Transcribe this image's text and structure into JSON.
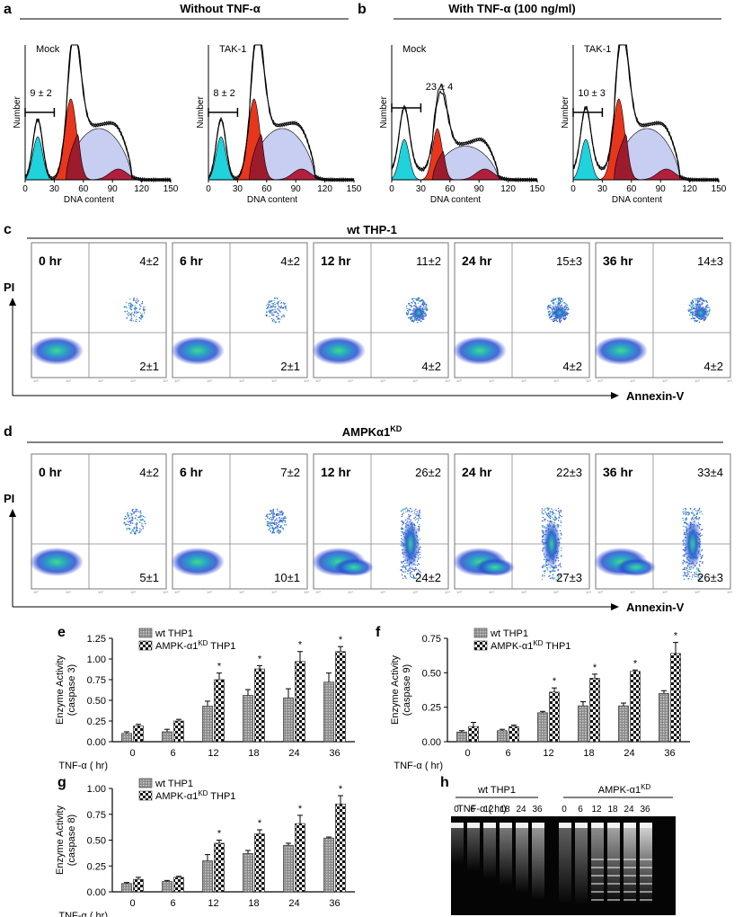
{
  "panels": {
    "a": {
      "letter": "a",
      "title": "Without TNF-α"
    },
    "b": {
      "letter": "b",
      "title": "With TNF-α (100 ng/ml)"
    },
    "c": {
      "letter": "c",
      "title": "wt THP-1"
    },
    "d": {
      "letter": "d",
      "title": "AMPKα1",
      "title_sup": "KD"
    },
    "e": {
      "letter": "e"
    },
    "f": {
      "letter": "f"
    },
    "g": {
      "letter": "g"
    },
    "h": {
      "letter": "h"
    }
  },
  "histograms": {
    "xlabel": "DNA content",
    "ylabel": "Number",
    "ticks": [
      "0",
      "30",
      "60",
      "90",
      "120",
      "150"
    ],
    "plots": [
      {
        "label": "Mock",
        "value": "9 ± 2"
      },
      {
        "label": "TAK-1",
        "value": "8 ± 2"
      },
      {
        "label": "Mock",
        "value": "23 ± 4"
      },
      {
        "label": "TAK-1",
        "value": "10 ± 3"
      }
    ]
  },
  "flow": {
    "y_axis": "PI",
    "x_axis": "Annexin-V",
    "tiny_ticks": [
      "10⁰",
      "10¹",
      "10²",
      "10³",
      "10⁴"
    ],
    "c": [
      {
        "time": "0 hr",
        "upper": "4±2",
        "lower": "2±1"
      },
      {
        "time": "6 hr",
        "upper": "4±2",
        "lower": "2±1"
      },
      {
        "time": "12 hr",
        "upper": "11±2",
        "lower": "4±2"
      },
      {
        "time": "24 hr",
        "upper": "15±3",
        "lower": "4±2"
      },
      {
        "time": "36 hr",
        "upper": "14±3",
        "lower": "4±2"
      }
    ],
    "d": [
      {
        "time": "0 hr",
        "upper": "4±2",
        "lower": "5±1"
      },
      {
        "time": "6 hr",
        "upper": "7±2",
        "lower": "10±1"
      },
      {
        "time": "12 hr",
        "upper": "26±2",
        "lower": "24±2"
      },
      {
        "time": "24 hr",
        "upper": "22±3",
        "lower": "27±3"
      },
      {
        "time": "36 hr",
        "upper": "33±4",
        "lower": "26±3"
      }
    ]
  },
  "chart_data": [
    {
      "type": "bar",
      "panel": "e",
      "categories": [
        "0",
        "6",
        "12",
        "18",
        "24",
        "36"
      ],
      "xlabel": "TNF-α ( hr)",
      "ylabel": "Enzyme Activity",
      "ylabel2": "(caspase 3)",
      "ylim": [
        0,
        1.25
      ],
      "yticks": [
        "0.00",
        "0.25",
        "0.50",
        "0.75",
        "1.00",
        "1.25"
      ],
      "series": [
        {
          "name": "wt THP1",
          "values": [
            0.1,
            0.12,
            0.43,
            0.56,
            0.53,
            0.72
          ],
          "errors": [
            0.02,
            0.03,
            0.06,
            0.07,
            0.11,
            0.11
          ]
        },
        {
          "name": "AMPK-α1",
          "name_sup": "KD",
          "name_tail": " THP1",
          "values": [
            0.19,
            0.25,
            0.75,
            0.88,
            0.97,
            1.09
          ],
          "errors": [
            0.02,
            0.02,
            0.08,
            0.04,
            0.12,
            0.06
          ]
        }
      ],
      "significance": [
        "",
        "",
        "*",
        "*",
        "*",
        "*"
      ]
    },
    {
      "type": "bar",
      "panel": "f",
      "categories": [
        "0",
        "6",
        "12",
        "18",
        "24",
        "36"
      ],
      "xlabel": "TNF-α ( hr)",
      "ylabel": "Enzyme Activity",
      "ylabel2": "(caspase 9)",
      "ylim": [
        0,
        0.75
      ],
      "yticks": [
        "0.00",
        "0.25",
        "0.50",
        "0.75"
      ],
      "series": [
        {
          "name": "wt THP1",
          "values": [
            0.07,
            0.08,
            0.21,
            0.26,
            0.26,
            0.35
          ],
          "errors": [
            0.01,
            0.01,
            0.01,
            0.03,
            0.02,
            0.02
          ]
        },
        {
          "name": "AMPK-α1",
          "name_sup": "KD",
          "name_tail": " THP1",
          "values": [
            0.11,
            0.11,
            0.36,
            0.46,
            0.51,
            0.64
          ],
          "errors": [
            0.03,
            0.01,
            0.03,
            0.03,
            0.01,
            0.08
          ]
        }
      ],
      "significance": [
        "",
        "",
        "*",
        "*",
        "*",
        "*"
      ]
    },
    {
      "type": "bar",
      "panel": "g",
      "categories": [
        "0",
        "6",
        "12",
        "18",
        "24",
        "36"
      ],
      "xlabel": "TNF-α ( hr)",
      "ylabel": "Enzyme Activity",
      "ylabel2": "(caspase 8)",
      "ylim": [
        0,
        1.0
      ],
      "yticks": [
        "0.00",
        "0.25",
        "0.50",
        "0.75",
        "1.00"
      ],
      "series": [
        {
          "name": "wt THP1",
          "values": [
            0.08,
            0.1,
            0.3,
            0.37,
            0.45,
            0.52
          ],
          "errors": [
            0.01,
            0.01,
            0.06,
            0.03,
            0.02,
            0.01
          ]
        },
        {
          "name": "AMPK-α1",
          "name_sup": "KD",
          "name_tail": " THP1",
          "values": [
            0.12,
            0.14,
            0.47,
            0.56,
            0.66,
            0.85
          ],
          "errors": [
            0.02,
            0.01,
            0.03,
            0.04,
            0.08,
            0.08
          ]
        }
      ],
      "significance": [
        "",
        "",
        "*",
        "*",
        "*",
        "*"
      ]
    }
  ],
  "gel": {
    "row_label": "TNF-α ( hr)",
    "group1": "wt THP1",
    "group2": "AMPK-α1",
    "group2_sup": "KD",
    "lanes": [
      "0",
      "6",
      "12",
      "18",
      "24",
      "36"
    ]
  }
}
